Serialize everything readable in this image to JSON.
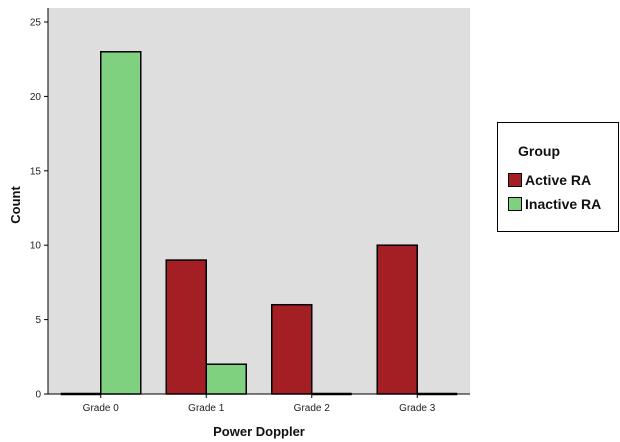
{
  "chart_data": {
    "type": "bar",
    "title": "",
    "xlabel": "Power Doppler",
    "ylabel": "Count",
    "categories": [
      "Grade 0",
      "Grade 1",
      "Grade 2",
      "Grade 3"
    ],
    "series": [
      {
        "name": "Active RA",
        "color": "#a31f24",
        "values": [
          0,
          9,
          6,
          10
        ]
      },
      {
        "name": "Inactive RA",
        "color": "#7fd17f",
        "values": [
          23,
          2,
          0,
          0
        ]
      }
    ],
    "ylim": [
      0,
      25
    ],
    "yticks": [
      "0",
      "5",
      "10",
      "15",
      "20",
      "25"
    ],
    "grid": false,
    "plot_background": "#dedede",
    "legend": {
      "title": "Group",
      "placement": "right"
    }
  }
}
